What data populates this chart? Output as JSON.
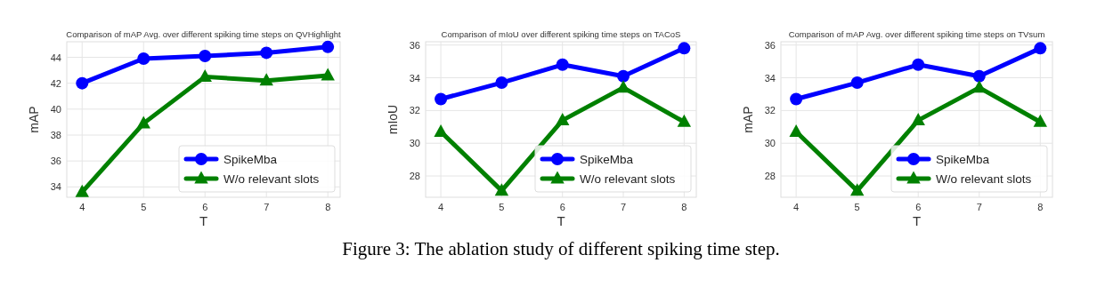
{
  "chart_data": [
    {
      "type": "line",
      "title": "Comparison of mAP Avg. over different spiking time steps on QVHighlight",
      "xlabel": "T",
      "ylabel": "mAP",
      "x": [
        4,
        5,
        6,
        7,
        8
      ],
      "xlim": [
        3.75,
        8.2
      ],
      "xticks": [
        4,
        5,
        6,
        7,
        8
      ],
      "ylim": [
        33.2,
        45.2
      ],
      "yticks": [
        34,
        36,
        38,
        40,
        42,
        44
      ],
      "grid": true,
      "legend": "bottom right",
      "series": [
        {
          "name": "SpikeMba",
          "color": "#0000ff",
          "marker": "circle",
          "values": [
            42.0,
            43.9,
            44.1,
            44.35,
            44.8
          ]
        },
        {
          "name": "W/o relevant slots",
          "color": "#008000",
          "marker": "triangle",
          "values": [
            33.6,
            38.9,
            42.5,
            42.2,
            42.6
          ]
        }
      ]
    },
    {
      "type": "line",
      "title": "Comparison of mIoU over different spiking time steps on TACoS",
      "xlabel": "T",
      "ylabel": "mIoU",
      "x": [
        4,
        5,
        6,
        7,
        8
      ],
      "xlim": [
        3.75,
        8.2
      ],
      "xticks": [
        4,
        5,
        6,
        7,
        8
      ],
      "ylim": [
        26.7,
        36.2
      ],
      "yticks": [
        28,
        30,
        32,
        34,
        36
      ],
      "grid": true,
      "legend": "bottom right",
      "annotations": [
        "Figure 3: The ablation study of different spiking time step."
      ],
      "series": [
        {
          "name": "SpikeMba",
          "color": "#0000ff",
          "marker": "circle",
          "values": [
            32.7,
            33.7,
            34.8,
            34.1,
            35.8
          ]
        },
        {
          "name": "W/o relevant slots",
          "color": "#008000",
          "marker": "triangle",
          "values": [
            30.7,
            27.1,
            31.4,
            33.4,
            31.3
          ]
        }
      ]
    },
    {
      "type": "line",
      "title": "Comparison of mAP Avg. over different spiking time steps on TVsum",
      "xlabel": "T",
      "ylabel": "mAP",
      "x": [
        4,
        5,
        6,
        7,
        8
      ],
      "xlim": [
        3.75,
        8.2
      ],
      "xticks": [
        4,
        5,
        6,
        7,
        8
      ],
      "ylim": [
        26.7,
        36.2
      ],
      "yticks": [
        28,
        30,
        32,
        34,
        36
      ],
      "grid": true,
      "legend": "bottom right",
      "series": [
        {
          "name": "SpikeMba",
          "color": "#0000ff",
          "marker": "circle",
          "values": [
            32.7,
            33.7,
            34.8,
            34.1,
            35.8
          ]
        },
        {
          "name": "W/o relevant slots",
          "color": "#008000",
          "marker": "triangle",
          "values": [
            30.7,
            27.1,
            31.4,
            33.4,
            31.3
          ]
        }
      ]
    }
  ]
}
